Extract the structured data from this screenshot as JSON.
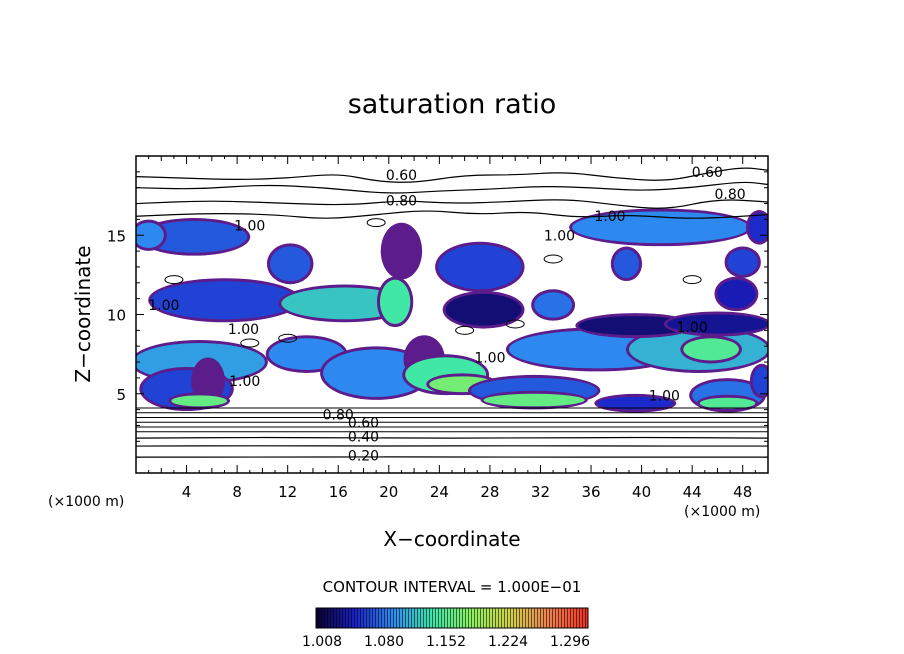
{
  "chart_data": {
    "type": "heatmap",
    "title": "saturation ratio",
    "xlabel": "X−coordinate",
    "ylabel": "Z−coordinate",
    "x_unit": "(×1000 m)",
    "x_unit_right": "(×1000 m)",
    "xlim": [
      0,
      50
    ],
    "ylim": [
      0,
      20
    ],
    "x_ticks": [
      4,
      8,
      12,
      16,
      20,
      24,
      28,
      32,
      36,
      40,
      44,
      48
    ],
    "x_tick_labels": [
      "4",
      "8",
      "12",
      "16",
      "20",
      "24",
      "28",
      "32",
      "36",
      "40",
      "44",
      "48"
    ],
    "y_ticks": [
      5,
      10,
      15
    ],
    "y_tick_labels": [
      "5",
      "10",
      "15"
    ],
    "contour_interval_text": "CONTOUR INTERVAL = 1.000E−01",
    "colorbar": {
      "ticks": [
        1.008,
        1.08,
        1.152,
        1.224,
        1.296
      ],
      "tick_labels": [
        "1.008",
        "1.080",
        "1.152",
        "1.224",
        "1.296"
      ],
      "colors": [
        "#0b0030",
        "#1a20c8",
        "#2e8cf0",
        "#3ce6a8",
        "#8cf060",
        "#d0d048",
        "#f08050",
        "#f03020"
      ]
    },
    "contour_labels": [
      {
        "text": "0.60",
        "x": 21.0,
        "y": 18.8
      },
      {
        "text": "0.60",
        "x": 45.2,
        "y": 19.0
      },
      {
        "text": "0.80",
        "x": 21.0,
        "y": 17.2
      },
      {
        "text": "0.80",
        "x": 47.0,
        "y": 17.6
      },
      {
        "text": "1.00",
        "x": 9.0,
        "y": 15.6
      },
      {
        "text": "1.00",
        "x": 37.5,
        "y": 16.2
      },
      {
        "text": "1.00",
        "x": 33.5,
        "y": 15.0
      },
      {
        "text": "1.00",
        "x": 2.2,
        "y": 10.6
      },
      {
        "text": "1.00",
        "x": 8.5,
        "y": 9.1
      },
      {
        "text": "1.00",
        "x": 28.0,
        "y": 7.3
      },
      {
        "text": "1.00",
        "x": 44.0,
        "y": 9.2
      },
      {
        "text": "1.00",
        "x": 8.6,
        "y": 5.8
      },
      {
        "text": "1.00",
        "x": 41.8,
        "y": 4.9
      },
      {
        "text": "0.80",
        "x": 16.0,
        "y": 3.7
      },
      {
        "text": "0.60",
        "x": 18.0,
        "y": 3.2
      },
      {
        "text": "0.40",
        "x": 18.0,
        "y": 2.3
      },
      {
        "text": "0.20",
        "x": 18.0,
        "y": 1.1
      }
    ],
    "regions": [
      {
        "cx": 4.6,
        "cy": 14.9,
        "rx": 4.2,
        "ry": 1.0,
        "v": 1.07
      },
      {
        "cx": 1.0,
        "cy": 15.0,
        "rx": 1.2,
        "ry": 0.8,
        "v": 1.09
      },
      {
        "cx": 12.2,
        "cy": 13.2,
        "rx": 1.6,
        "ry": 1.1,
        "v": 1.07
      },
      {
        "cx": 7.0,
        "cy": 10.9,
        "rx": 5.8,
        "ry": 1.2,
        "v": 1.06
      },
      {
        "cx": 16.5,
        "cy": 10.7,
        "rx": 5.0,
        "ry": 1.0,
        "v": 1.12
      },
      {
        "cx": 21.0,
        "cy": 14.0,
        "rx": 1.4,
        "ry": 1.6,
        "v": 1.01
      },
      {
        "cx": 20.5,
        "cy": 10.8,
        "rx": 1.2,
        "ry": 1.4,
        "v": 1.14
      },
      {
        "cx": 27.2,
        "cy": 13.0,
        "rx": 3.3,
        "ry": 1.4,
        "v": 1.06
      },
      {
        "cx": 27.5,
        "cy": 10.3,
        "rx": 3.0,
        "ry": 1.0,
        "v": 1.02
      },
      {
        "cx": 33.0,
        "cy": 10.6,
        "rx": 1.5,
        "ry": 0.8,
        "v": 1.08
      },
      {
        "cx": 41.5,
        "cy": 15.5,
        "rx": 7.0,
        "ry": 1.0,
        "v": 1.09
      },
      {
        "cx": 38.8,
        "cy": 13.2,
        "rx": 1.0,
        "ry": 0.9,
        "v": 1.07
      },
      {
        "cx": 48.0,
        "cy": 13.3,
        "rx": 1.2,
        "ry": 0.8,
        "v": 1.06
      },
      {
        "cx": 49.3,
        "cy": 15.5,
        "rx": 0.8,
        "ry": 0.9,
        "v": 1.05
      },
      {
        "cx": 47.5,
        "cy": 11.3,
        "rx": 1.5,
        "ry": 0.9,
        "v": 1.04
      },
      {
        "cx": 5.0,
        "cy": 7.0,
        "rx": 5.2,
        "ry": 1.2,
        "v": 1.1
      },
      {
        "cx": 13.5,
        "cy": 7.5,
        "rx": 3.0,
        "ry": 1.0,
        "v": 1.09
      },
      {
        "cx": 19.0,
        "cy": 6.3,
        "rx": 4.2,
        "ry": 1.5,
        "v": 1.09
      },
      {
        "cx": 4.0,
        "cy": 5.3,
        "rx": 3.5,
        "ry": 1.2,
        "v": 1.06
      },
      {
        "cx": 5.7,
        "cy": 5.8,
        "rx": 1.1,
        "ry": 1.3,
        "v": 1.01
      },
      {
        "cx": 5.0,
        "cy": 4.55,
        "rx": 2.2,
        "ry": 0.35,
        "v": 1.16
      },
      {
        "cx": 22.8,
        "cy": 7.2,
        "rx": 1.4,
        "ry": 1.3,
        "v": 1.01
      },
      {
        "cx": 24.5,
        "cy": 6.2,
        "rx": 3.2,
        "ry": 1.1,
        "v": 1.14
      },
      {
        "cx": 25.8,
        "cy": 5.6,
        "rx": 2.6,
        "ry": 0.5,
        "v": 1.17
      },
      {
        "cx": 36.5,
        "cy": 7.8,
        "rx": 7.0,
        "ry": 1.2,
        "v": 1.09
      },
      {
        "cx": 44.5,
        "cy": 7.8,
        "rx": 5.5,
        "ry": 1.3,
        "v": 1.11
      },
      {
        "cx": 45.5,
        "cy": 7.8,
        "rx": 2.2,
        "ry": 0.7,
        "v": 1.15
      },
      {
        "cx": 39.5,
        "cy": 9.3,
        "rx": 4.5,
        "ry": 0.6,
        "v": 1.02
      },
      {
        "cx": 46.0,
        "cy": 9.4,
        "rx": 4.0,
        "ry": 0.6,
        "v": 1.03
      },
      {
        "cx": 31.5,
        "cy": 5.2,
        "rx": 5.0,
        "ry": 0.8,
        "v": 1.07
      },
      {
        "cx": 31.5,
        "cy": 4.6,
        "rx": 4.0,
        "ry": 0.4,
        "v": 1.16
      },
      {
        "cx": 39.5,
        "cy": 4.4,
        "rx": 3.0,
        "ry": 0.4,
        "v": 1.05
      },
      {
        "cx": 46.8,
        "cy": 4.9,
        "rx": 2.8,
        "ry": 0.9,
        "v": 1.08
      },
      {
        "cx": 46.8,
        "cy": 4.4,
        "rx": 2.2,
        "ry": 0.35,
        "v": 1.15
      },
      {
        "cx": 49.5,
        "cy": 5.8,
        "rx": 0.7,
        "ry": 0.9,
        "v": 1.06
      }
    ],
    "contours": [
      {
        "level": 0.6,
        "points": [
          [
            0,
            18.7
          ],
          [
            4,
            18.6
          ],
          [
            8,
            18.5
          ],
          [
            12,
            18.6
          ],
          [
            16,
            18.9
          ],
          [
            19,
            18.4
          ],
          [
            22,
            18.3
          ],
          [
            26,
            18.8
          ],
          [
            30,
            18.8
          ],
          [
            34,
            19.0
          ],
          [
            38,
            18.6
          ],
          [
            42,
            18.4
          ],
          [
            45,
            18.9
          ],
          [
            48,
            19.3
          ],
          [
            50,
            19.1
          ]
        ]
      },
      {
        "level": 0.7,
        "points": [
          [
            0,
            18.0
          ],
          [
            5,
            17.9
          ],
          [
            10,
            18.2
          ],
          [
            15,
            18.0
          ],
          [
            20,
            17.6
          ],
          [
            24,
            17.8
          ],
          [
            28,
            17.9
          ],
          [
            32,
            18.1
          ],
          [
            36,
            18.0
          ],
          [
            40,
            17.8
          ],
          [
            44,
            18.0
          ],
          [
            48,
            18.4
          ],
          [
            50,
            18.2
          ]
        ]
      },
      {
        "level": 0.8,
        "points": [
          [
            0,
            17.0
          ],
          [
            6,
            17.2
          ],
          [
            12,
            17.0
          ],
          [
            17,
            16.9
          ],
          [
            21,
            17.2
          ],
          [
            25,
            17.0
          ],
          [
            29,
            17.1
          ],
          [
            34,
            17.3
          ],
          [
            38,
            16.9
          ],
          [
            42,
            16.6
          ],
          [
            46,
            17.3
          ],
          [
            50,
            17.1
          ]
        ]
      },
      {
        "level": 0.9,
        "points": [
          [
            0,
            16.2
          ],
          [
            6,
            16.4
          ],
          [
            11,
            16.3
          ],
          [
            15,
            16.0
          ],
          [
            19,
            16.3
          ],
          [
            23,
            16.6
          ],
          [
            27,
            16.3
          ],
          [
            31,
            16.5
          ],
          [
            35,
            16.1
          ],
          [
            39,
            16.3
          ],
          [
            44,
            16.0
          ],
          [
            50,
            16.3
          ]
        ]
      },
      {
        "level": 0.4,
        "points": [
          [
            0,
            2.2
          ],
          [
            10,
            2.25
          ],
          [
            20,
            2.2
          ],
          [
            30,
            2.2
          ],
          [
            40,
            2.25
          ],
          [
            50,
            2.2
          ]
        ]
      },
      {
        "level": 0.3,
        "points": [
          [
            0,
            1.7
          ],
          [
            10,
            1.72
          ],
          [
            20,
            1.7
          ],
          [
            30,
            1.72
          ],
          [
            40,
            1.7
          ],
          [
            50,
            1.7
          ]
        ]
      },
      {
        "level": 0.2,
        "points": [
          [
            0,
            1.0
          ],
          [
            10,
            1.0
          ],
          [
            20,
            1.02
          ],
          [
            30,
            1.0
          ],
          [
            40,
            1.0
          ],
          [
            50,
            1.0
          ]
        ]
      }
    ]
  }
}
